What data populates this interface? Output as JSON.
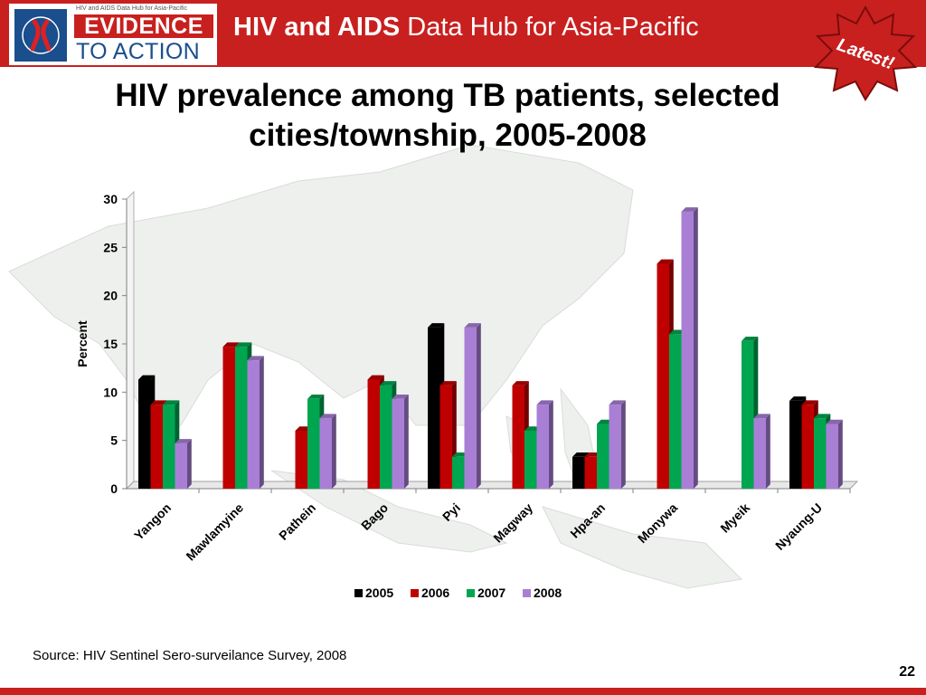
{
  "header": {
    "logo_small_text": "HIV and AIDS Data Hub for Asia-Pacific",
    "logo_line1": "EVIDENCE",
    "logo_line2": "TO ACTION",
    "title_bold": "HIV and AIDS",
    "title_rest": " Data Hub for Asia-Pacific",
    "badge": "Latest!"
  },
  "slide": {
    "title": "HIV prevalence among TB patients, selected cities/township, 2005-2008",
    "source": "Source: HIV Sentinel Sero-surveilance Survey, 2008",
    "page_number": "22"
  },
  "colors": {
    "brand_red": "#c8201f",
    "brand_blue": "#1a4e8c"
  },
  "chart_data": {
    "type": "bar",
    "title": "HIV prevalence among TB patients, selected cities/township, 2005-2008",
    "ylabel": "Percent",
    "xlabel": "",
    "ylim": [
      0,
      30
    ],
    "yticks": [
      0,
      5,
      10,
      15,
      20,
      25,
      30
    ],
    "legend_position": "bottom",
    "grid": false,
    "categories": [
      "Yangon",
      "Mawlamyine",
      "Pathein",
      "Bago",
      "Pyi",
      "Magway",
      "Hpa-an",
      "Monywa",
      "Myeik",
      "Nyaung-U"
    ],
    "series": [
      {
        "name": "2005",
        "color": "#000000",
        "values": [
          11.3,
          null,
          null,
          null,
          16.7,
          null,
          3.3,
          null,
          null,
          9.1
        ]
      },
      {
        "name": "2006",
        "color": "#c00000",
        "values": [
          8.7,
          14.7,
          6.0,
          11.3,
          10.7,
          10.7,
          3.3,
          23.3,
          null,
          8.7
        ]
      },
      {
        "name": "2007",
        "color": "#00a550",
        "values": [
          8.7,
          14.7,
          9.3,
          10.7,
          3.3,
          6.0,
          6.7,
          16.0,
          15.3,
          7.3
        ]
      },
      {
        "name": "2008",
        "color": "#a97fd6",
        "values": [
          4.7,
          13.3,
          7.3,
          9.3,
          16.7,
          8.7,
          8.7,
          28.7,
          7.3,
          6.7
        ]
      }
    ]
  }
}
